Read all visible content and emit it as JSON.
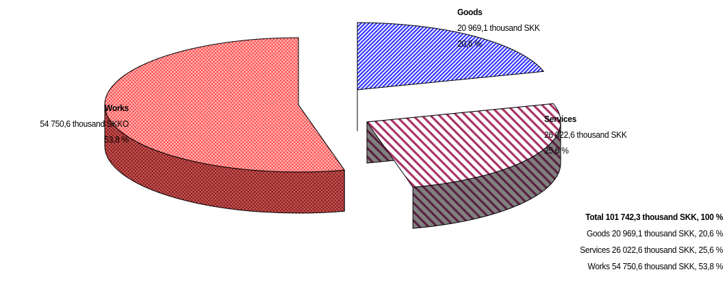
{
  "chart_data": {
    "type": "pie",
    "title": "",
    "slices": [
      {
        "name": "Goods",
        "value": 20969.1,
        "value_label": "20 969,1 thousand SKK",
        "percent_label": "20,6 %",
        "color": "#3333ff",
        "side_color": "#1f2f99",
        "pattern": "diagonal-stripes"
      },
      {
        "name": "Services",
        "value": 26022.6,
        "value_label": "26 022,6 thousand SKK",
        "percent_label": "25,6 %",
        "color": "#aa3366",
        "side_color": "#808080",
        "pattern": "diagonal-stripes"
      },
      {
        "name": "Works",
        "value": 54750.6,
        "value_label": "54 750,6 thousand SKKO",
        "percent_label": "53,8 %",
        "color": "#ff3333",
        "side_color": "#8b1a1a",
        "pattern": "crosshatch"
      }
    ],
    "summary": {
      "total": "Total 101 742,3 thousand SKK, 100 %",
      "lines": [
        "Goods 20 969,1 thousand SKK, 20,6 %",
        "Services 26 022,6 thousand SKK, 25,6 %",
        "Works 54 750,6 thousand SKK, 53,8 %"
      ]
    },
    "view": "3d-exploded"
  }
}
